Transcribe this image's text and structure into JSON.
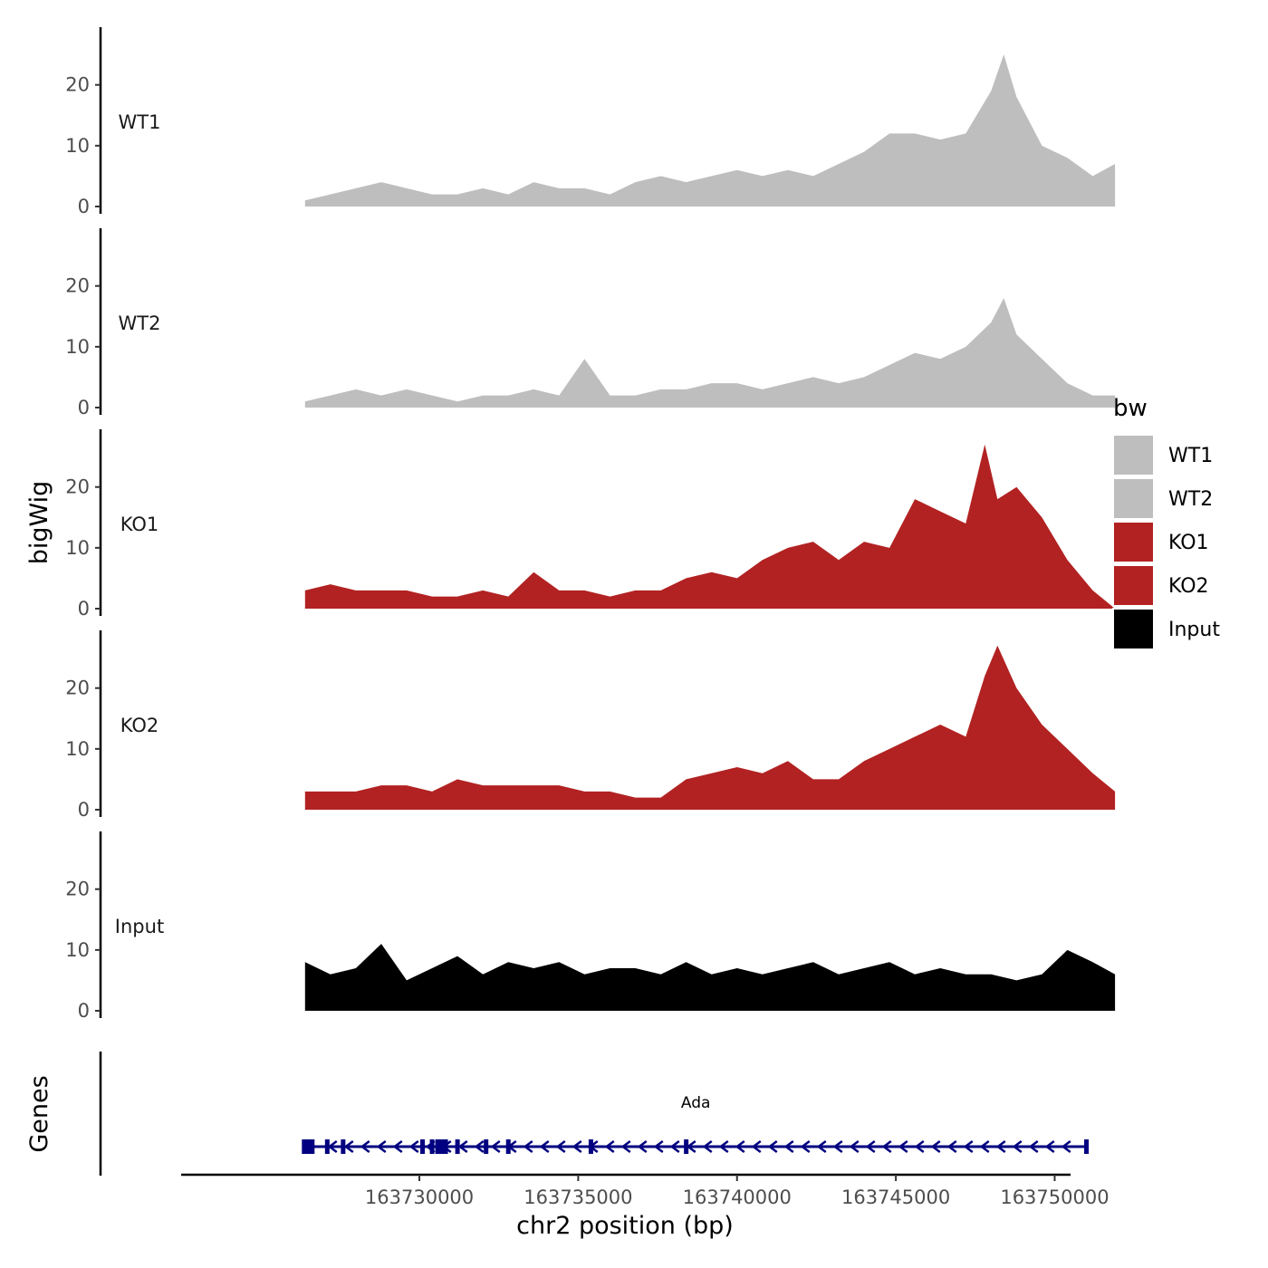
{
  "chart_data": {
    "type": "area",
    "ylabel": "bigWig",
    "xlabel": "chr2 position (bp)",
    "ylim": [
      0,
      28
    ],
    "y_ticks": [
      0,
      10,
      20
    ],
    "xlim": [
      163722500,
      163750500
    ],
    "x_ticks": [
      163730000,
      163735000,
      163740000,
      163745000,
      163750000
    ],
    "x_tick_labels": [
      "163730000",
      "163735000",
      "163740000",
      "163745000",
      "163750000"
    ],
    "legend": {
      "title": "bw",
      "items": [
        {
          "name": "WT1",
          "color": "#bebebe"
        },
        {
          "name": "WT2",
          "color": "#bebebe"
        },
        {
          "name": "KO1",
          "color": "#b22222"
        },
        {
          "name": "KO2",
          "color": "#b22222"
        },
        {
          "name": "Input",
          "color": "#000000"
        }
      ]
    },
    "series": [
      {
        "name": "WT1",
        "color": "#bebebe",
        "x": [
          163726400,
          163727200,
          163728000,
          163728800,
          163729600,
          163730400,
          163731200,
          163732000,
          163732800,
          163733600,
          163734400,
          163735200,
          163736000,
          163736800,
          163737600,
          163738400,
          163739200,
          163740000,
          163740800,
          163741600,
          163742400,
          163743200,
          163744000,
          163744800,
          163745600,
          163746400,
          163747200,
          163748000,
          163748400,
          163748800,
          163749600,
          163750400,
          163751200,
          163751900
        ],
        "values": [
          1,
          2,
          3,
          4,
          3,
          2,
          2,
          3,
          2,
          4,
          3,
          3,
          2,
          4,
          5,
          4,
          5,
          6,
          5,
          6,
          5,
          7,
          9,
          12,
          12,
          11,
          12,
          19,
          25,
          18,
          10,
          8,
          5,
          7
        ]
      },
      {
        "name": "WT2",
        "color": "#bebebe",
        "x": [
          163726400,
          163727200,
          163728000,
          163728800,
          163729600,
          163730400,
          163731200,
          163732000,
          163732800,
          163733600,
          163734400,
          163735200,
          163736000,
          163736800,
          163737600,
          163738400,
          163739200,
          163740000,
          163740800,
          163741600,
          163742400,
          163743200,
          163744000,
          163744800,
          163745600,
          163746400,
          163747200,
          163748000,
          163748400,
          163748800,
          163749600,
          163750400,
          163751200,
          163751900
        ],
        "values": [
          1,
          2,
          3,
          2,
          3,
          2,
          1,
          2,
          2,
          3,
          2,
          8,
          2,
          2,
          3,
          3,
          4,
          4,
          3,
          4,
          5,
          4,
          5,
          7,
          9,
          8,
          10,
          14,
          18,
          12,
          8,
          4,
          2,
          2
        ]
      },
      {
        "name": "KO1",
        "color": "#b22222",
        "x": [
          163726400,
          163727200,
          163728000,
          163728800,
          163729600,
          163730400,
          163731200,
          163732000,
          163732800,
          163733600,
          163734400,
          163735200,
          163736000,
          163736800,
          163737600,
          163738400,
          163739200,
          163740000,
          163740800,
          163741600,
          163742400,
          163743200,
          163744000,
          163744800,
          163745600,
          163746400,
          163747200,
          163747800,
          163748200,
          163748800,
          163749600,
          163750400,
          163751200,
          163751900
        ],
        "values": [
          3,
          4,
          3,
          3,
          3,
          2,
          2,
          3,
          2,
          6,
          3,
          3,
          2,
          3,
          3,
          5,
          6,
          5,
          8,
          10,
          11,
          8,
          11,
          10,
          18,
          16,
          14,
          27,
          18,
          20,
          15,
          8,
          3,
          0
        ]
      },
      {
        "name": "KO2",
        "color": "#b22222",
        "x": [
          163726400,
          163727200,
          163728000,
          163728800,
          163729600,
          163730400,
          163731200,
          163732000,
          163732800,
          163733600,
          163734400,
          163735200,
          163736000,
          163736800,
          163737600,
          163738400,
          163739200,
          163740000,
          163740800,
          163741600,
          163742400,
          163743200,
          163744000,
          163744800,
          163745600,
          163746400,
          163747200,
          163747800,
          163748200,
          163748800,
          163749600,
          163750400,
          163751200,
          163751900
        ],
        "values": [
          3,
          3,
          3,
          4,
          4,
          3,
          5,
          4,
          4,
          4,
          4,
          3,
          3,
          2,
          2,
          5,
          6,
          7,
          6,
          8,
          5,
          5,
          8,
          10,
          12,
          14,
          12,
          22,
          27,
          20,
          14,
          10,
          6,
          3
        ]
      },
      {
        "name": "Input",
        "color": "#000000",
        "x": [
          163726400,
          163727200,
          163728000,
          163728800,
          163729600,
          163730400,
          163731200,
          163732000,
          163732800,
          163733600,
          163734400,
          163735200,
          163736000,
          163736800,
          163737600,
          163738400,
          163739200,
          163740000,
          163740800,
          163741600,
          163742400,
          163743200,
          163744000,
          163744800,
          163745600,
          163746400,
          163747200,
          163748000,
          163748800,
          163749600,
          163750400,
          163751200,
          163751900
        ],
        "values": [
          8,
          6,
          7,
          11,
          5,
          7,
          9,
          6,
          8,
          7,
          8,
          6,
          7,
          7,
          6,
          8,
          6,
          7,
          6,
          7,
          8,
          6,
          7,
          8,
          6,
          7,
          6,
          6,
          5,
          6,
          10,
          8,
          6
        ]
      }
    ],
    "genes": [
      {
        "name": "Ada",
        "start": 163726400,
        "end": 163751000,
        "strand": "-",
        "color": "#000080",
        "exon_positions": [
          163726500,
          163727100,
          163727600,
          163730100,
          163730400,
          163730700,
          163731200,
          163732100,
          163732800,
          163735400,
          163738400,
          163751000
        ]
      }
    ],
    "genes_panel_label": "Genes"
  }
}
